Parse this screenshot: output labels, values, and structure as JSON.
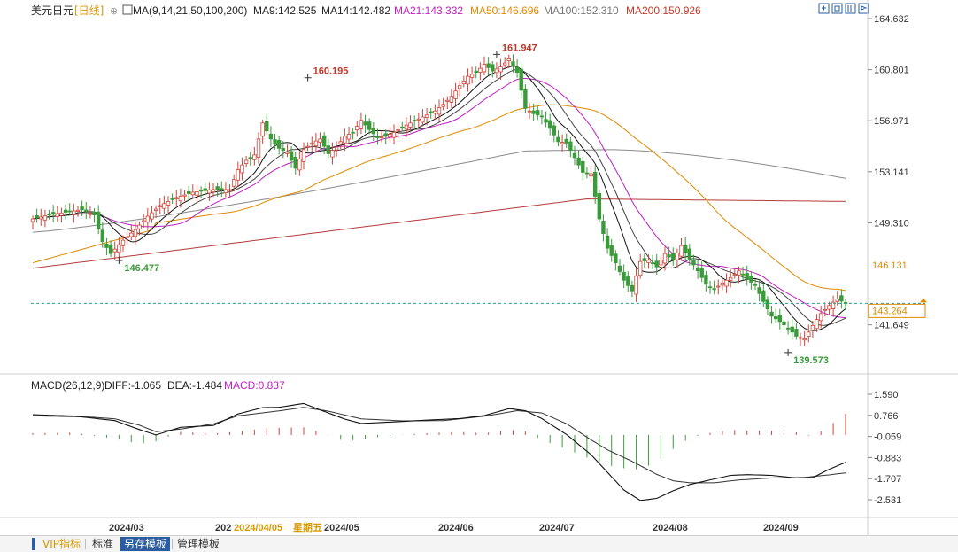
{
  "header": {
    "instrument": "美元日元",
    "period": "[日线]",
    "period_symbol": "⊕",
    "ma_set": "MA(9,14,21,50,100,200)",
    "ma_values": [
      {
        "text": "MA9:142.525",
        "color": "#222222"
      },
      {
        "text": "MA14:142.482",
        "color": "#222222"
      },
      {
        "text": "MA21:143.332",
        "color": "#c01ec0"
      },
      {
        "text": "MA50:146.696",
        "color": "#e08a00"
      },
      {
        "text": "MA100:152.310",
        "color": "#777777"
      },
      {
        "text": "MA200:150.926",
        "color": "#c0392b"
      }
    ]
  },
  "toolbar_icons": [
    "zoom-icon",
    "restore-icon",
    "book-icon",
    "settings-icon"
  ],
  "macd_header": {
    "label": "MACD(26,12,9)",
    "diff": "DIFF:-1.065",
    "dea": "DEA:-1.484",
    "macd": "MACD:0.837",
    "macd_color": "#c01ec0"
  },
  "price_axis": {
    "ticks": [
      "164.632",
      "160.801",
      "156.971",
      "153.141",
      "149.310",
      "141.649"
    ],
    "ma50_label": "146.131",
    "last_price": "143.264",
    "last_price_color": "#e08a00"
  },
  "macd_axis": {
    "ticks": [
      "1.590",
      "0.766",
      "-0.059",
      "-0.883",
      "-1.707",
      "-2.531"
    ]
  },
  "annotations": {
    "high1": "160.195",
    "high2": "161.947",
    "low1": "146.477",
    "low2": "139.573"
  },
  "x_axis": {
    "labels": [
      "2024/03",
      "202",
      "2024/04/05",
      "星期五",
      "2024/05",
      "2024/06",
      "2024/07",
      "2024/08",
      "2024/09"
    ],
    "highlight_color": "#d79a00"
  },
  "bottom_tabs": {
    "vip": "VIP指标",
    "standard": "标准",
    "save_template": "另存模板",
    "manage_template": "管理模板"
  },
  "colors": {
    "up": "#d0443a",
    "down": "#3a9b3a",
    "ma9": "#111111",
    "ma14": "#444444",
    "ma21": "#c01ec0",
    "ma50": "#e08a00",
    "ma100": "#8a8a8a",
    "ma200": "#b53a3a",
    "diff": "#111111",
    "dea": "#333333",
    "last_line": "#1fa0a0"
  },
  "chart_data": {
    "type": "candlestick",
    "symbol": "美元日元",
    "period": "日线",
    "x_labels": [
      "2024/03",
      "2024/05",
      "2024/06",
      "2024/07",
      "2024/08",
      "2024/09"
    ],
    "price_range": [
      138.5,
      164.632
    ],
    "moving_averages_last": {
      "MA9": 142.525,
      "MA14": 142.482,
      "MA21": 143.332,
      "MA50": 146.696,
      "MA100": 152.31,
      "MA200": 150.926
    },
    "annotated_extremes": {
      "high_2024_04": 160.195,
      "high_2024_07": 161.947,
      "low_2024_03": 146.477,
      "low_2024_09": 139.573
    },
    "last_price": 143.264,
    "close_path": [
      [
        0,
        149.6
      ],
      [
        4,
        149.9
      ],
      [
        8,
        150.1
      ],
      [
        12,
        150.3
      ],
      [
        15,
        149.9
      ],
      [
        17,
        147.9
      ],
      [
        19,
        147.0
      ],
      [
        22,
        148.0
      ],
      [
        25,
        148.8
      ],
      [
        28,
        149.8
      ],
      [
        31,
        150.6
      ],
      [
        35,
        151.2
      ],
      [
        39,
        151.6
      ],
      [
        44,
        151.8
      ],
      [
        48,
        151.8
      ],
      [
        50,
        153.3
      ],
      [
        52,
        154.0
      ],
      [
        54,
        154.4
      ],
      [
        56,
        156.8
      ],
      [
        58,
        155.6
      ],
      [
        60,
        154.9
      ],
      [
        62,
        154.6
      ],
      [
        64,
        153.4
      ],
      [
        66,
        154.8
      ],
      [
        68,
        155.3
      ],
      [
        70,
        155.6
      ],
      [
        72,
        154.5
      ],
      [
        74,
        155.0
      ],
      [
        76,
        155.8
      ],
      [
        78,
        156.1
      ],
      [
        80,
        157.0
      ],
      [
        82,
        156.3
      ],
      [
        84,
        155.7
      ],
      [
        86,
        155.8
      ],
      [
        88,
        156.1
      ],
      [
        90,
        156.5
      ],
      [
        92,
        156.8
      ],
      [
        94,
        157.1
      ],
      [
        96,
        157.4
      ],
      [
        98,
        157.7
      ],
      [
        100,
        158.2
      ],
      [
        102,
        158.8
      ],
      [
        104,
        159.6
      ],
      [
        106,
        160.3
      ],
      [
        108,
        160.6
      ],
      [
        110,
        161.2
      ],
      [
        112,
        160.7
      ],
      [
        114,
        161.0
      ],
      [
        116,
        161.6
      ],
      [
        118,
        160.6
      ],
      [
        120,
        157.9
      ],
      [
        122,
        157.5
      ],
      [
        124,
        157.3
      ],
      [
        126,
        156.4
      ],
      [
        128,
        155.4
      ],
      [
        130,
        155.3
      ],
      [
        132,
        154.2
      ],
      [
        134,
        153.1
      ],
      [
        136,
        153.0
      ],
      [
        138,
        149.6
      ],
      [
        140,
        147.4
      ],
      [
        142,
        146.3
      ],
      [
        144,
        145.0
      ],
      [
        146,
        144.2
      ],
      [
        148,
        146.4
      ],
      [
        150,
        146.5
      ],
      [
        152,
        146.0
      ],
      [
        154,
        147.0
      ],
      [
        156,
        146.5
      ],
      [
        158,
        147.6
      ],
      [
        160,
        146.6
      ],
      [
        162,
        145.7
      ],
      [
        164,
        144.7
      ],
      [
        166,
        144.3
      ],
      [
        168,
        144.8
      ],
      [
        170,
        145.2
      ],
      [
        172,
        145.7
      ],
      [
        174,
        145.1
      ],
      [
        176,
        144.6
      ],
      [
        178,
        143.4
      ],
      [
        180,
        142.3
      ],
      [
        182,
        141.9
      ],
      [
        184,
        141.4
      ],
      [
        186,
        140.8
      ],
      [
        188,
        140.6
      ],
      [
        190,
        141.6
      ],
      [
        192,
        142.5
      ],
      [
        194,
        143.1
      ],
      [
        196,
        143.6
      ],
      [
        198,
        143.26
      ]
    ],
    "macd": {
      "params": "26,12,9",
      "DIFF": -1.065,
      "DEA": -1.484,
      "MACD": 0.837,
      "axis_ticks": [
        1.59,
        0.766,
        -0.059,
        -0.883,
        -1.707,
        -2.531
      ],
      "diff_path": [
        [
          0,
          0.79
        ],
        [
          10,
          0.74
        ],
        [
          20,
          0.56
        ],
        [
          26,
          0.21
        ],
        [
          30,
          0.0
        ],
        [
          36,
          0.3
        ],
        [
          44,
          0.37
        ],
        [
          50,
          0.82
        ],
        [
          56,
          1.07
        ],
        [
          60,
          1.08
        ],
        [
          66,
          1.23
        ],
        [
          70,
          0.98
        ],
        [
          76,
          0.62
        ],
        [
          80,
          0.45
        ],
        [
          88,
          0.51
        ],
        [
          96,
          0.58
        ],
        [
          104,
          0.64
        ],
        [
          110,
          0.76
        ],
        [
          116,
          1.03
        ],
        [
          120,
          0.95
        ],
        [
          124,
          0.64
        ],
        [
          130,
          0.02
        ],
        [
          136,
          -0.77
        ],
        [
          140,
          -1.46
        ],
        [
          144,
          -2.15
        ],
        [
          148,
          -2.56
        ],
        [
          152,
          -2.48
        ],
        [
          156,
          -2.18
        ],
        [
          160,
          -1.94
        ],
        [
          166,
          -1.72
        ],
        [
          170,
          -1.58
        ],
        [
          174,
          -1.55
        ],
        [
          180,
          -1.58
        ],
        [
          186,
          -1.68
        ],
        [
          190,
          -1.67
        ],
        [
          194,
          -1.34
        ],
        [
          198,
          -1.07
        ]
      ],
      "dea_path": [
        [
          0,
          0.75
        ],
        [
          14,
          0.7
        ],
        [
          20,
          0.63
        ],
        [
          26,
          0.38
        ],
        [
          30,
          0.13
        ],
        [
          36,
          0.23
        ],
        [
          44,
          0.43
        ],
        [
          50,
          0.75
        ],
        [
          60,
          0.94
        ],
        [
          66,
          1.08
        ],
        [
          72,
          0.93
        ],
        [
          80,
          0.63
        ],
        [
          90,
          0.55
        ],
        [
          100,
          0.56
        ],
        [
          110,
          0.73
        ],
        [
          118,
          0.95
        ],
        [
          124,
          0.86
        ],
        [
          130,
          0.44
        ],
        [
          136,
          -0.19
        ],
        [
          140,
          -0.58
        ],
        [
          146,
          -1.03
        ],
        [
          152,
          -1.54
        ],
        [
          156,
          -1.79
        ],
        [
          160,
          -1.87
        ],
        [
          166,
          -1.87
        ],
        [
          172,
          -1.76
        ],
        [
          180,
          -1.68
        ],
        [
          188,
          -1.66
        ],
        [
          194,
          -1.56
        ],
        [
          198,
          -1.48
        ]
      ],
      "hist_path": [
        [
          0,
          0.07
        ],
        [
          10,
          0.09
        ],
        [
          20,
          -0.15
        ],
        [
          26,
          -0.35
        ],
        [
          30,
          -0.25
        ],
        [
          36,
          0.12
        ],
        [
          44,
          0.06
        ],
        [
          50,
          0.13
        ],
        [
          56,
          0.25
        ],
        [
          60,
          0.28
        ],
        [
          66,
          0.3
        ],
        [
          70,
          0.11
        ],
        [
          76,
          -0.25
        ],
        [
          82,
          -0.12
        ],
        [
          90,
          0.01
        ],
        [
          96,
          0.07
        ],
        [
          104,
          0.12
        ],
        [
          110,
          0.07
        ],
        [
          116,
          0.2
        ],
        [
          120,
          0.14
        ],
        [
          124,
          -0.2
        ],
        [
          130,
          -0.55
        ],
        [
          136,
          -0.95
        ],
        [
          140,
          -1.18
        ],
        [
          144,
          -1.3
        ],
        [
          148,
          -1.35
        ],
        [
          152,
          -1.05
        ],
        [
          156,
          -0.55
        ],
        [
          160,
          -0.12
        ],
        [
          166,
          0.12
        ],
        [
          170,
          0.2
        ],
        [
          174,
          0.17
        ],
        [
          180,
          0.17
        ],
        [
          186,
          0.1
        ],
        [
          190,
          -0.07
        ],
        [
          194,
          0.35
        ],
        [
          198,
          0.83
        ]
      ]
    }
  }
}
